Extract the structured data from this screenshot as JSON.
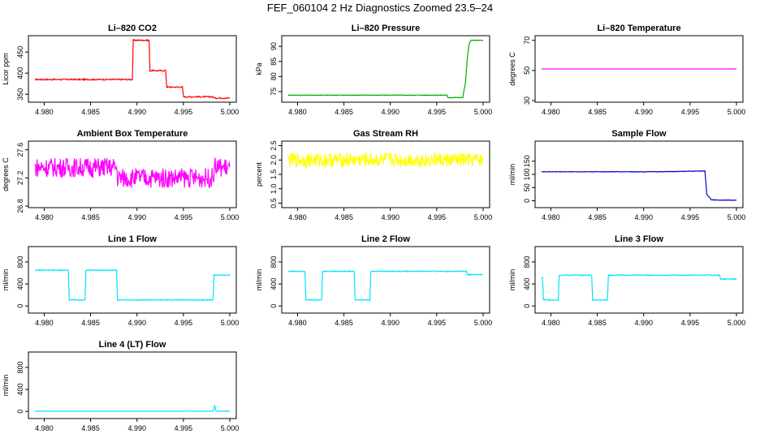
{
  "page_title": "FEF_060104  2 Hz Diagnostics Zoomed 23.5–24",
  "chart_data": [
    {
      "type": "line",
      "title": "Li–820 CO2",
      "ylabel": "Licor ppm",
      "xlim": [
        4.979,
        5.0
      ],
      "xticks": [
        "4.980",
        "4.985",
        "4.990",
        "4.995",
        "5.000"
      ],
      "ylim": [
        335,
        485
      ],
      "yticks": [
        "350",
        "400",
        "450"
      ],
      "color": "#ff0000",
      "noise": 1.5,
      "series": [
        {
          "x": [
            4.979,
            4.9895,
            4.9896,
            4.9913,
            4.9914,
            4.9931,
            4.9932,
            4.9949,
            4.995,
            4.9982,
            4.9983,
            5.0
          ],
          "y": [
            385,
            385,
            478,
            478,
            406,
            406,
            367,
            367,
            344,
            344,
            341,
            341
          ]
        }
      ]
    },
    {
      "type": "line",
      "title": "Li–820 Pressure",
      "ylabel": "kPa",
      "xlim": [
        4.979,
        5.0
      ],
      "xticks": [
        "4.980",
        "4.985",
        "4.990",
        "4.995",
        "5.000"
      ],
      "ylim": [
        72,
        93
      ],
      "yticks": [
        "75",
        "80",
        "85",
        "90"
      ],
      "color": "#00aa00",
      "noise": 0.1,
      "series": [
        {
          "x": [
            4.979,
            4.9961,
            4.9962,
            4.9978,
            4.9981,
            4.9983,
            4.9985,
            4.9987,
            5.0
          ],
          "y": [
            73.8,
            73.8,
            73.0,
            73.0,
            78,
            86,
            91,
            92,
            92
          ]
        }
      ]
    },
    {
      "type": "line",
      "title": "Li–820 Temperature",
      "ylabel": "degrees C",
      "xlim": [
        4.979,
        5.0
      ],
      "xticks": [
        "4.980",
        "4.985",
        "4.990",
        "4.995",
        "5.000"
      ],
      "ylim": [
        30,
        72
      ],
      "yticks": [
        "30",
        "50",
        "70"
      ],
      "color": "#ff00ff",
      "noise": 0,
      "series": [
        {
          "x": [
            4.979,
            5.0
          ],
          "y": [
            51,
            51
          ]
        }
      ]
    },
    {
      "type": "line",
      "title": "Ambient Box Temperature",
      "ylabel": "degrees C",
      "xlim": [
        4.979,
        5.0
      ],
      "xticks": [
        "4.980",
        "4.985",
        "4.990",
        "4.995",
        "5.000"
      ],
      "ylim": [
        26.8,
        27.7
      ],
      "yticks": [
        "26.8",
        "27.2",
        "27.6"
      ],
      "color": "#ff00ff",
      "noise": 0.14,
      "series": [
        {
          "x": [
            4.979,
            4.9878,
            4.9879,
            4.9982,
            4.9983,
            5.0
          ],
          "y": [
            27.35,
            27.35,
            27.2,
            27.2,
            27.35,
            27.35
          ]
        }
      ]
    },
    {
      "type": "line",
      "title": "Gas Stream RH",
      "ylabel": "percent",
      "xlim": [
        4.979,
        5.0
      ],
      "xticks": [
        "4.980",
        "4.985",
        "4.990",
        "4.995",
        "5.000"
      ],
      "ylim": [
        0.4,
        2.6
      ],
      "yticks": [
        "0.5",
        "1.0",
        "1.5",
        "2.0",
        "2.5"
      ],
      "color": "#ffff00",
      "noise": 0.25,
      "series": [
        {
          "x": [
            4.979,
            5.0
          ],
          "y": [
            2.0,
            2.0
          ]
        }
      ]
    },
    {
      "type": "line",
      "title": "Sample Flow",
      "ylabel": "ml/min",
      "xlim": [
        4.979,
        5.0
      ],
      "xticks": [
        "4.980",
        "4.985",
        "4.990",
        "4.995",
        "5.000"
      ],
      "ylim": [
        -20,
        220
      ],
      "yticks": [
        "0",
        "50",
        "100",
        "150"
      ],
      "color": "#0000cc",
      "noise": 1,
      "series": [
        {
          "x": [
            4.979,
            4.992,
            4.9965,
            4.9966,
            4.9968,
            4.9973,
            5.0
          ],
          "y": [
            110,
            110,
            113,
            113,
            25,
            3,
            2
          ]
        }
      ]
    },
    {
      "type": "line",
      "title": "Line 1 Flow",
      "ylabel": "ml/min",
      "xlim": [
        4.979,
        5.0
      ],
      "xticks": [
        "4.980",
        "4.985",
        "4.990",
        "4.995",
        "5.000"
      ],
      "ylim": [
        -100,
        1050
      ],
      "yticks": [
        "0",
        "400",
        "800"
      ],
      "color": "#00e5ff",
      "noise": 8,
      "series": [
        {
          "x": [
            4.979,
            4.9826,
            4.9827,
            4.9844,
            4.9845,
            4.9878,
            4.9879,
            4.9982,
            4.9983,
            5.0
          ],
          "y": [
            650,
            650,
            110,
            110,
            650,
            650,
            110,
            110,
            560,
            560
          ]
        }
      ]
    },
    {
      "type": "line",
      "title": "Line 2 Flow",
      "ylabel": "ml/min",
      "xlim": [
        4.979,
        5.0
      ],
      "xticks": [
        "4.980",
        "4.985",
        "4.990",
        "4.995",
        "5.000"
      ],
      "ylim": [
        -100,
        1050
      ],
      "yticks": [
        "0",
        "400",
        "800"
      ],
      "color": "#00e5ff",
      "noise": 8,
      "series": [
        {
          "x": [
            4.979,
            4.9808,
            4.9809,
            4.9826,
            4.9827,
            4.9861,
            4.9862,
            4.9878,
            4.9879,
            4.9982,
            4.9983,
            5.0
          ],
          "y": [
            630,
            630,
            110,
            110,
            630,
            630,
            110,
            110,
            630,
            630,
            570,
            570
          ]
        }
      ]
    },
    {
      "type": "line",
      "title": "Line 3 Flow",
      "ylabel": "ml/min",
      "xlim": [
        4.979,
        5.0
      ],
      "xticks": [
        "4.980",
        "4.985",
        "4.990",
        "4.995",
        "5.000"
      ],
      "ylim": [
        -100,
        1050
      ],
      "yticks": [
        "0",
        "400",
        "800"
      ],
      "color": "#00e5ff",
      "noise": 8,
      "series": [
        {
          "x": [
            4.979,
            4.9791,
            4.9792,
            4.9808,
            4.9809,
            4.9844,
            4.9845,
            4.9861,
            4.9862,
            4.9982,
            4.9983,
            5.0
          ],
          "y": [
            520,
            520,
            110,
            110,
            560,
            560,
            110,
            110,
            560,
            560,
            490,
            490
          ]
        }
      ]
    },
    {
      "type": "line",
      "title": "Line 4 (LT) Flow",
      "ylabel": "ml/min",
      "xlim": [
        4.979,
        5.0
      ],
      "xticks": [
        "4.980",
        "4.985",
        "4.990",
        "4.995",
        "5.000"
      ],
      "ylim": [
        -100,
        1050
      ],
      "yticks": [
        "0",
        "400",
        "800"
      ],
      "color": "#00e5ff",
      "noise": 2,
      "series": [
        {
          "x": [
            4.979,
            4.9982,
            4.9983,
            4.9984,
            4.9985,
            5.0
          ],
          "y": [
            5,
            5,
            60,
            100,
            5,
            5
          ]
        }
      ]
    }
  ]
}
